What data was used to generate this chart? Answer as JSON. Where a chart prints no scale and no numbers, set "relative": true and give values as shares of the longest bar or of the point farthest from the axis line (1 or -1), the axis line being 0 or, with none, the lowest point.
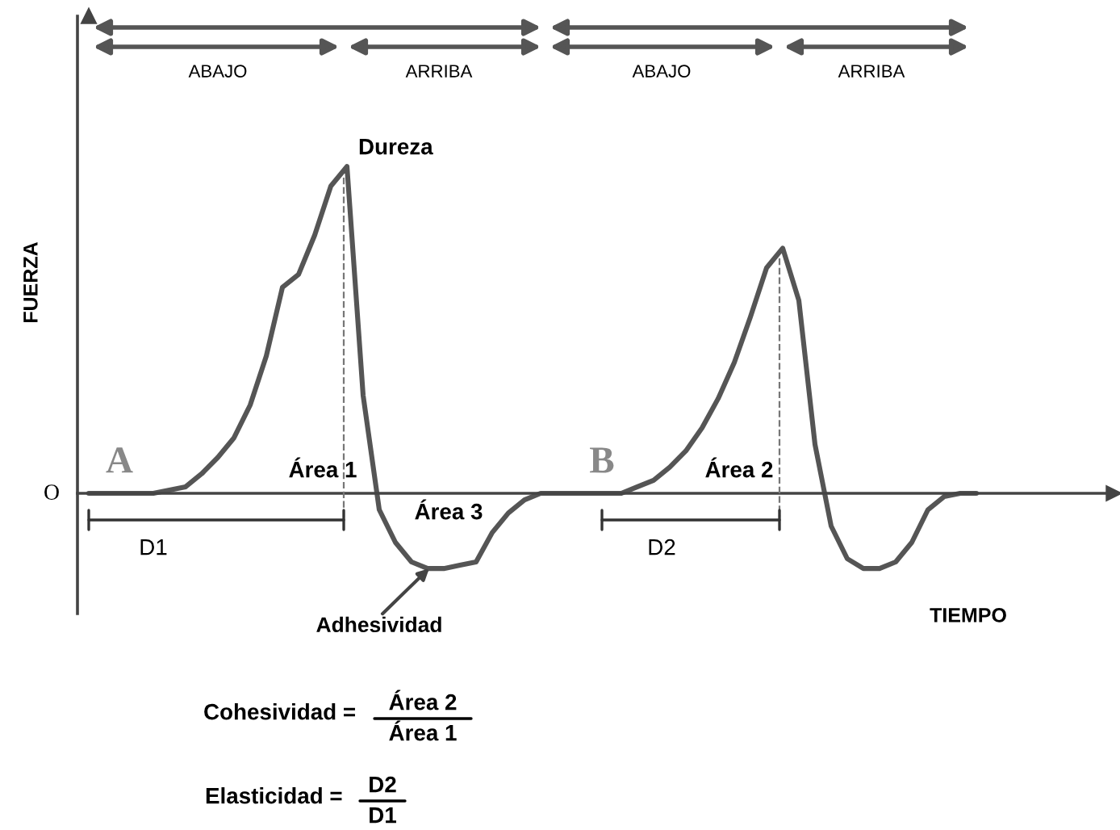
{
  "chart_data": {
    "type": "line",
    "relative": true,
    "ylabel": "FUERZA",
    "xlabel": "TIEMPO",
    "grid": false,
    "legend": false,
    "marker": "none",
    "line_style": "solid",
    "categories": [
      null,
      null,
      null,
      null,
      null,
      null,
      null,
      null,
      null,
      null,
      null,
      null,
      null,
      null,
      null,
      null,
      null,
      null,
      null,
      null,
      null,
      null,
      null,
      null,
      null,
      null,
      null,
      null,
      null,
      null,
      null,
      null,
      null,
      null,
      null,
      null,
      null,
      null,
      null,
      null,
      null,
      null,
      null,
      null,
      null,
      null,
      null,
      null,
      null,
      null,
      null,
      null,
      null,
      null,
      null,
      null
    ],
    "series": [
      {
        "color": "#555555",
        "values": [
          0,
          0,
          0,
          0,
          0,
          0.01,
          0.02,
          0.06,
          0.11,
          0.17,
          0.27,
          0.42,
          0.63,
          0.67,
          0.79,
          0.94,
          1,
          0.3,
          -0.05,
          -0.15,
          -0.21,
          -0.23,
          -0.23,
          -0.22,
          -0.21,
          -0.12,
          -0.06,
          -0.02,
          0,
          0,
          0,
          0,
          0,
          0,
          0.02,
          0.04,
          0.08,
          0.13,
          0.2,
          0.29,
          0.4,
          0.54,
          0.69,
          0.75,
          0.59,
          0.15,
          -0.1,
          -0.2,
          -0.23,
          -0.23,
          -0.21,
          -0.15,
          -0.05,
          -0.01,
          0,
          0
        ]
      }
    ],
    "annotations": [
      "ABAJO",
      "ARRIBA",
      "ABAJO",
      "ARRIBA",
      "Dureza",
      "A",
      "Área 1",
      "Área 3",
      "B",
      "Área 2",
      "D1",
      "D2",
      "Adhesividad",
      "O",
      "Cohesividad =",
      "Área 2",
      "Área 1",
      "Elasticidad =",
      "D2",
      "D1"
    ]
  }
}
